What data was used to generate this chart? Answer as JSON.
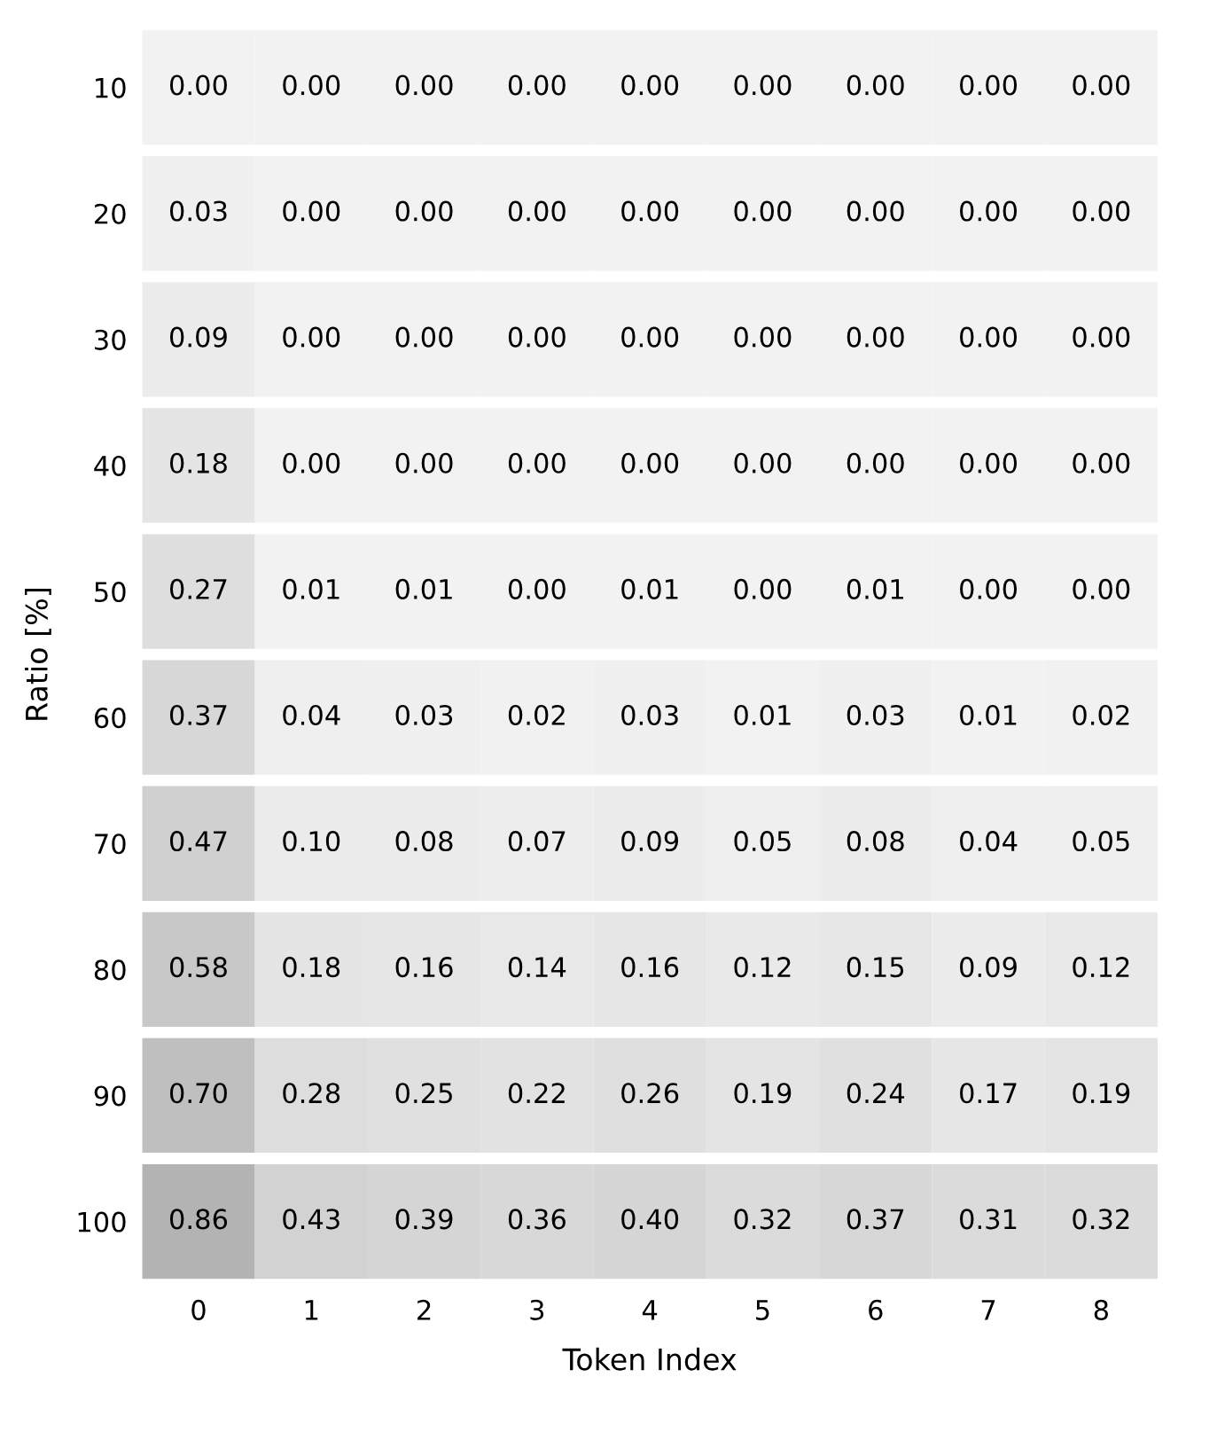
{
  "chart_data": {
    "type": "heatmap",
    "xlabel": "Token Index",
    "ylabel": "Ratio [%]",
    "categories": [
      "0",
      "1",
      "2",
      "3",
      "4",
      "5",
      "6",
      "7",
      "8"
    ],
    "y_categories": [
      "10",
      "20",
      "30",
      "40",
      "50",
      "60",
      "70",
      "80",
      "90",
      "100"
    ],
    "cells": [
      [
        0.0,
        0.0,
        0.0,
        0.0,
        0.0,
        0.0,
        0.0,
        0.0,
        0.0
      ],
      [
        0.03,
        0.0,
        0.0,
        0.0,
        0.0,
        0.0,
        0.0,
        0.0,
        0.0
      ],
      [
        0.09,
        0.0,
        0.0,
        0.0,
        0.0,
        0.0,
        0.0,
        0.0,
        0.0
      ],
      [
        0.18,
        0.0,
        0.0,
        0.0,
        0.0,
        0.0,
        0.0,
        0.0,
        0.0
      ],
      [
        0.27,
        0.01,
        0.01,
        0.0,
        0.01,
        0.0,
        0.01,
        0.0,
        0.0
      ],
      [
        0.37,
        0.04,
        0.03,
        0.02,
        0.03,
        0.01,
        0.03,
        0.01,
        0.02
      ],
      [
        0.47,
        0.1,
        0.08,
        0.07,
        0.09,
        0.05,
        0.08,
        0.04,
        0.05
      ],
      [
        0.58,
        0.18,
        0.16,
        0.14,
        0.16,
        0.12,
        0.15,
        0.09,
        0.12
      ],
      [
        0.7,
        0.28,
        0.25,
        0.22,
        0.26,
        0.19,
        0.24,
        0.17,
        0.19
      ],
      [
        0.86,
        0.43,
        0.39,
        0.36,
        0.4,
        0.32,
        0.37,
        0.31,
        0.32
      ]
    ],
    "data_labels": true,
    "cell_labels": [
      [
        "0.00",
        "0.00",
        "0.00",
        "0.00",
        "0.00",
        "0.00",
        "0.00",
        "0.00",
        "0.00"
      ],
      [
        "0.03",
        "0.00",
        "0.00",
        "0.00",
        "0.00",
        "0.00",
        "0.00",
        "0.00",
        "0.00"
      ],
      [
        "0.09",
        "0.00",
        "0.00",
        "0.00",
        "0.00",
        "0.00",
        "0.00",
        "0.00",
        "0.00"
      ],
      [
        "0.18",
        "0.00",
        "0.00",
        "0.00",
        "0.00",
        "0.00",
        "0.00",
        "0.00",
        "0.00"
      ],
      [
        "0.27",
        "0.01",
        "0.01",
        "0.00",
        "0.01",
        "0.00",
        "0.01",
        "0.00",
        "0.00"
      ],
      [
        "0.37",
        "0.04",
        "0.03",
        "0.02",
        "0.03",
        "0.01",
        "0.03",
        "0.01",
        "0.02"
      ],
      [
        "0.47",
        "0.10",
        "0.08",
        "0.07",
        "0.09",
        "0.05",
        "0.08",
        "0.04",
        "0.05"
      ],
      [
        "0.58",
        "0.18",
        "0.16",
        "0.14",
        "0.16",
        "0.12",
        "0.15",
        "0.09",
        "0.12"
      ],
      [
        "0.70",
        "0.28",
        "0.25",
        "0.22",
        "0.26",
        "0.19",
        "0.24",
        "0.17",
        "0.19"
      ],
      [
        "0.86",
        "0.43",
        "0.39",
        "0.36",
        "0.40",
        "0.32",
        "0.37",
        "0.31",
        "0.32"
      ]
    ],
    "colors": [
      "#f2f2f2",
      "#b3b3b3"
    ]
  }
}
